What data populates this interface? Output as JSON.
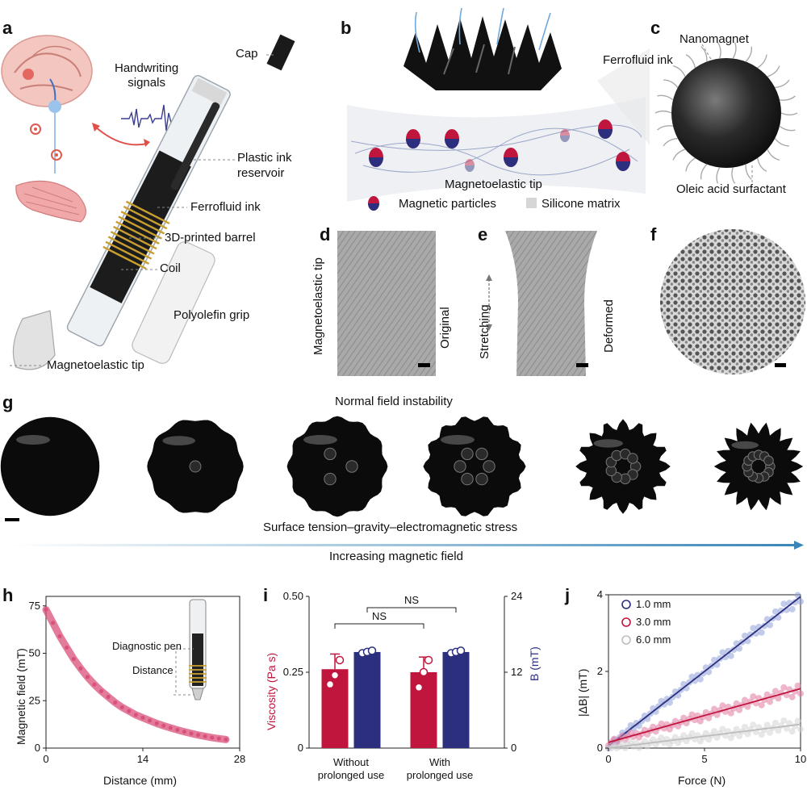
{
  "panels": {
    "a": "a",
    "b": "b",
    "c": "c",
    "d": "d",
    "e": "e",
    "f": "f",
    "g": "g",
    "h": "h",
    "i": "i",
    "j": "j"
  },
  "panel_a": {
    "handwriting": "Handwriting\nsignals",
    "cap": "Cap",
    "plastic_ink_reservoir": "Plastic ink\nreservoir",
    "ferrofluid_ink": "Ferrofluid ink",
    "barrel": "3D-printed barrel",
    "coil": "Coil",
    "grip": "Polyolefin grip",
    "tip": "Magnetoelastic tip"
  },
  "panel_b": {
    "ferrofluid_ink": "Ferrofluid ink",
    "tip": "Magnetoelastic tip",
    "legend_particles": "Magnetic particles",
    "legend_matrix": "Silicone matrix"
  },
  "panel_c": {
    "nanomagnet": "Nanomagnet",
    "surfactant": "Oleic acid surfactant"
  },
  "panel_d": {
    "tip": "Magnetoelastic tip",
    "state": "Original"
  },
  "panel_e": {
    "stretching": "Stretching",
    "state": "Deformed"
  },
  "panel_g": {
    "title": "Normal field instability",
    "subtitle": "Surface tension–gravity–electromagnetic stress",
    "arrow_label": "Increasing magnetic field"
  },
  "colors": {
    "crimson": "#c0163e",
    "navy": "#2b2f7e",
    "pink": "#d9507a",
    "grey": "#bdbdbd",
    "arrow": "#3a86b8"
  },
  "chart_data": [
    {
      "id": "h",
      "type": "scatter",
      "xlabel": "Distance (mm)",
      "ylabel": "Magnetic field (mT)",
      "xlim": [
        0,
        28
      ],
      "ylim": [
        0,
        80
      ],
      "xticks": [
        "0",
        "14",
        "28"
      ],
      "yticks": [
        "0",
        "25",
        "50",
        "75"
      ],
      "annotations": {
        "pen": "Diagnostic pen",
        "distance": "Distance"
      },
      "series": [
        {
          "name": "B",
          "x": [
            0,
            1,
            2,
            3,
            4,
            5,
            6,
            7,
            8,
            9,
            10,
            11,
            12,
            13,
            14,
            15,
            16,
            17,
            18,
            19,
            20,
            21,
            22,
            23,
            24,
            25,
            26
          ],
          "values": [
            73,
            66,
            59,
            53,
            47,
            42,
            37.5,
            33.5,
            30,
            27,
            24,
            21.5,
            19.5,
            17.5,
            16,
            14.5,
            13,
            11.8,
            10.7,
            9.6,
            8.6,
            7.7,
            6.9,
            6.2,
            5.5,
            5,
            4.5
          ]
        }
      ]
    },
    {
      "id": "i",
      "type": "bar",
      "categories": [
        "Without\nprolonged use",
        "With\nprolonged use"
      ],
      "ylabel_left": "Viscosity (Pa s)",
      "ylabel_right": "B (mT)",
      "ylim_left": [
        0,
        0.5
      ],
      "ylim_right": [
        0,
        24
      ],
      "yticks_left": [
        "0",
        "0.25",
        "0.50"
      ],
      "yticks_right": [
        "0",
        "12",
        "24"
      ],
      "series": [
        {
          "name": "Viscosity (Pa s)",
          "values": [
            0.26,
            0.25
          ],
          "errors": [
            0.05,
            0.05
          ],
          "points": [
            [
              0.21,
              0.24,
              0.29
            ],
            [
              0.2,
              0.25,
              0.29
            ]
          ]
        },
        {
          "name": "B (mT)",
          "values": [
            15.2,
            15.2
          ],
          "points": [
            [
              15.0,
              15.2,
              15.4
            ],
            [
              15.0,
              15.2,
              15.4
            ]
          ]
        }
      ],
      "significance": [
        "NS",
        "NS"
      ]
    },
    {
      "id": "j",
      "type": "scatter",
      "xlabel": "Force (N)",
      "ylabel": "|ΔB| (mT)",
      "xlim": [
        0,
        10
      ],
      "ylim": [
        0,
        4
      ],
      "xticks": [
        "0",
        "5",
        "10"
      ],
      "yticks": [
        "0",
        "2",
        "4"
      ],
      "series": [
        {
          "name": "1.0 mm",
          "fit": [
            0.05,
            0.39
          ]
        },
        {
          "name": "3.0 mm",
          "fit": [
            0.15,
            0.14
          ]
        },
        {
          "name": "6.0 mm",
          "fit": [
            0.0,
            0.062
          ]
        }
      ]
    }
  ]
}
